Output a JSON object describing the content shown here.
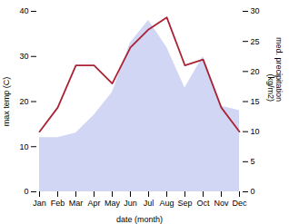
{
  "chart_data": {
    "type": "combo",
    "xlabel": "date (month)",
    "ylabel": "max temp (C)",
    "y2label": "med. precipitation\n(kg/m2)",
    "categories": [
      "Jan",
      "Feb",
      "Mar",
      "Apr",
      "May",
      "Jun",
      "Jul",
      "Aug",
      "Sep",
      "Oct",
      "Nov",
      "Dec"
    ],
    "series": [
      {
        "type": "area",
        "color": "#c0c8f0",
        "values": [
          12,
          12,
          13,
          17,
          22,
          33,
          38,
          32,
          23,
          30,
          19,
          18
        ]
      },
      {
        "type": "line",
        "color": "#aa2233",
        "axis": "y2",
        "values": [
          10,
          14,
          21,
          21,
          18,
          24,
          27,
          29,
          21,
          22,
          14,
          10
        ]
      }
    ],
    "ylim": [
      0,
      40
    ],
    "yticks": [
      0,
      10,
      20,
      30,
      40
    ],
    "y2lim": [
      0,
      30
    ],
    "y2ticks": [
      0,
      5,
      10,
      15,
      20,
      25,
      30
    ]
  }
}
